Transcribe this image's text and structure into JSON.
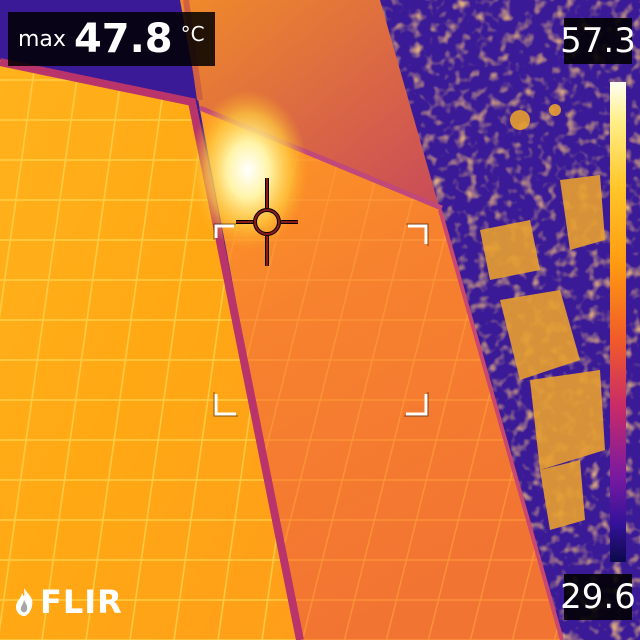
{
  "readout": {
    "label": "max",
    "value": "47.8",
    "unit": "°C"
  },
  "scale": {
    "max": "57.3",
    "min": "29.6",
    "palette": "iron",
    "colors": [
      "#fffff2",
      "#ffc628",
      "#ff9a10",
      "#c72a6a",
      "#7a1aa0",
      "#0c0a4a"
    ]
  },
  "overlay": {
    "spot_meter": "crosshair-icon",
    "measurement_box": "corner-brackets"
  },
  "logo": {
    "text": "FLIR"
  }
}
